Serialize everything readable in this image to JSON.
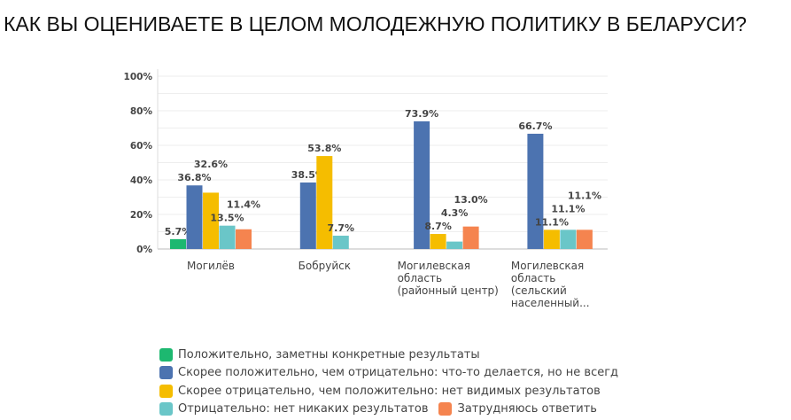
{
  "chart_data": {
    "type": "bar",
    "title": "КАК ВЫ ОЦЕНИВАЕТЕ В ЦЕЛОМ МОЛОДЕЖНУЮ ПОЛИТИКУ В БЕЛАРУСИ?",
    "categories": [
      [
        "Могилёв"
      ],
      [
        "Бобруйск"
      ],
      [
        "Могилевская",
        "область",
        "(районный центр)"
      ],
      [
        "Могилевская",
        "область",
        "(сельский",
        "населенный..."
      ]
    ],
    "yticks": [
      "0%",
      "20%",
      "40%",
      "60%",
      "80%",
      "100%"
    ],
    "ylim": [
      0,
      100
    ],
    "grid": true,
    "legend_position": "bottom",
    "series": [
      {
        "name": "Положительно, заметны конкретные результаты",
        "color": "#1db870",
        "values": [
          5.7,
          0,
          0,
          0
        ]
      },
      {
        "name": "Скорее положительно, чем отрицательно: что-то делается, но не всегд",
        "color": "#4c73b0",
        "values": [
          36.8,
          38.5,
          73.9,
          66.7
        ]
      },
      {
        "name": "Скорее отрицательно, чем положительно: нет видимых результатов",
        "color": "#f5bd00",
        "values": [
          32.6,
          53.8,
          8.7,
          11.1
        ]
      },
      {
        "name": "Отрицательно: нет никаких результатов",
        "color": "#6ac6c8",
        "values": [
          13.5,
          7.7,
          4.3,
          11.1
        ]
      },
      {
        "name": "Затрудняюсь ответить",
        "color": "#f5844f",
        "values": [
          11.4,
          0,
          13.0,
          11.1
        ]
      }
    ]
  }
}
